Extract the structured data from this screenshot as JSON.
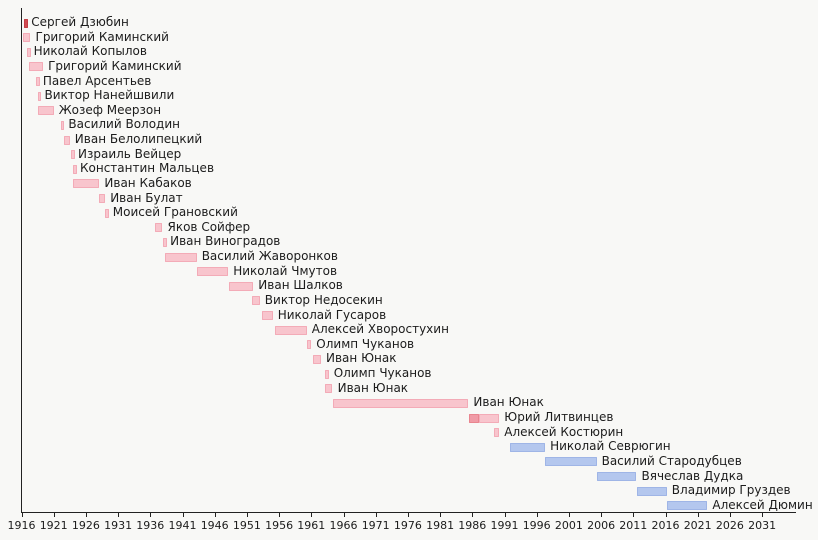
{
  "figure": {
    "background_color": "#f8f8f6",
    "axis_color": "#222222",
    "text_color": "#1c1c1c"
  },
  "chart_data": {
    "type": "bar",
    "subtype": "horizontal-gantt-timeline",
    "title": "",
    "xlabel": "",
    "ylabel": "",
    "grid": false,
    "legend": "none",
    "axis_domain": {
      "min_year": 1916,
      "max_year": 2036
    },
    "x_ticks": [
      1916,
      1921,
      1926,
      1931,
      1936,
      1941,
      1946,
      1951,
      1956,
      1961,
      1966,
      1971,
      1976,
      1981,
      1986,
      1991,
      1996,
      2001,
      2006,
      2011,
      2016,
      2021,
      2026,
      2031
    ],
    "colors": {
      "pink": "#f8c5cd",
      "pink_dark": "#f09ba6",
      "blue": "#b4c7ee",
      "red": "#d14b52"
    },
    "bars": [
      {
        "name": "Сергей Дзюбин",
        "start": 1916.45,
        "end": 1916.75,
        "color": "red"
      },
      {
        "name": "Григорий Каминский",
        "start": 1916.25,
        "end": 1917.4,
        "color": "pink"
      },
      {
        "name": "Николай Копылов",
        "start": 1916.85,
        "end": 1917.1,
        "color": "pink"
      },
      {
        "name": "Григорий Каминский",
        "start": 1917.2,
        "end": 1919.35,
        "color": "pink"
      },
      {
        "name": "Павел Арсентьев",
        "start": 1918.3,
        "end": 1918.55,
        "color": "pink"
      },
      {
        "name": "Виктор Нанейшвили",
        "start": 1918.5,
        "end": 1918.8,
        "color": "pink"
      },
      {
        "name": "Жозеф Меерзон",
        "start": 1918.6,
        "end": 1921.0,
        "color": "pink"
      },
      {
        "name": "Василий Володин",
        "start": 1922.1,
        "end": 1922.5,
        "color": "pink"
      },
      {
        "name": "Иван Белолипецкий",
        "start": 1922.6,
        "end": 1923.5,
        "color": "pink"
      },
      {
        "name": "Израиль Вейцер",
        "start": 1923.7,
        "end": 1924.0,
        "color": "pink"
      },
      {
        "name": "Константин Мальцев",
        "start": 1924.0,
        "end": 1924.3,
        "color": "pink"
      },
      {
        "name": "Иван Кабаков",
        "start": 1924.0,
        "end": 1928.1,
        "color": "pink"
      },
      {
        "name": "Иван Булат",
        "start": 1928.0,
        "end": 1929.0,
        "color": "pink"
      },
      {
        "name": "Моисей Грановский",
        "start": 1929.0,
        "end": 1929.4,
        "color": "pink"
      },
      {
        "name": "Яков Сойфер",
        "start": 1936.7,
        "end": 1937.9,
        "color": "pink"
      },
      {
        "name": "Иван Виноградов",
        "start": 1938.0,
        "end": 1938.3,
        "color": "pink"
      },
      {
        "name": "Василий Жаворонков",
        "start": 1938.2,
        "end": 1943.2,
        "color": "pink"
      },
      {
        "name": "Николай Чмутов",
        "start": 1943.3,
        "end": 1948.1,
        "color": "pink"
      },
      {
        "name": "Иван Шалков",
        "start": 1948.2,
        "end": 1952.0,
        "color": "pink"
      },
      {
        "name": "Виктор Недосекин",
        "start": 1951.8,
        "end": 1953.0,
        "color": "pink"
      },
      {
        "name": "Николай Гусаров",
        "start": 1953.3,
        "end": 1955.0,
        "color": "pink"
      },
      {
        "name": "Алексей Хворостухин",
        "start": 1955.3,
        "end": 1960.3,
        "color": "pink"
      },
      {
        "name": "Олимп Чуканов",
        "start": 1960.3,
        "end": 1961.0,
        "color": "pink"
      },
      {
        "name": "Иван Юнак",
        "start": 1961.2,
        "end": 1962.5,
        "color": "pink"
      },
      {
        "name": "Олимп Чуканов",
        "start": 1963.1,
        "end": 1963.7,
        "color": "pink"
      },
      {
        "name": "Иван Юнак",
        "start": 1963.1,
        "end": 1964.3,
        "color": "pink"
      },
      {
        "name": "Иван Юнак",
        "start": 1964.3,
        "end": 1985.4,
        "color": "pink"
      },
      {
        "name": "Юрий Литвинцев",
        "start": 1985.5,
        "end": 1990.2,
        "color": "pink",
        "segments": [
          {
            "start": 1985.5,
            "end": 1987.0,
            "color": "pink_dark"
          },
          {
            "start": 1987.0,
            "end": 1990.2,
            "color": "pink"
          }
        ]
      },
      {
        "name": "Алексей Костюрин",
        "start": 1989.4,
        "end": 1990.2,
        "color": "pink"
      },
      {
        "name": "Николай Севрюгин",
        "start": 1991.8,
        "end": 1997.3,
        "color": "blue"
      },
      {
        "name": "Василий Стародубцев",
        "start": 1997.3,
        "end": 2005.3,
        "color": "blue"
      },
      {
        "name": "Вячеслав Дудка",
        "start": 2005.3,
        "end": 2011.5,
        "color": "blue"
      },
      {
        "name": "Владимир Груздев",
        "start": 2011.5,
        "end": 2016.2,
        "color": "blue"
      },
      {
        "name": "Алексей Дюмин",
        "start": 2016.2,
        "end": 2022.5,
        "color": "blue"
      }
    ]
  }
}
